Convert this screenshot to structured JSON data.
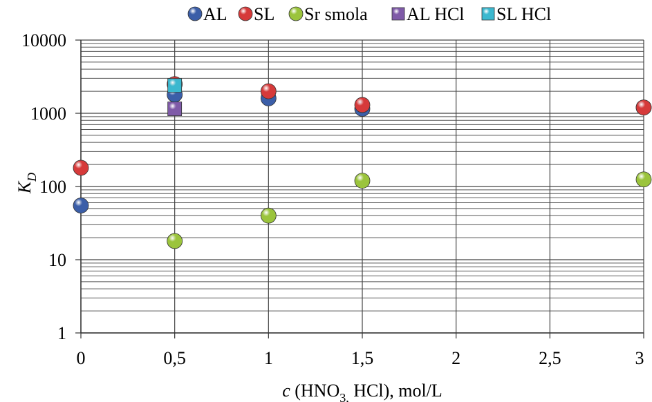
{
  "chart_data": {
    "type": "scatter",
    "xlabel_parts": {
      "var": "c",
      "pre": " (HNO",
      "sub": "3,",
      "post": " HCl), mol/L"
    },
    "ylabel_parts": {
      "var": "K",
      "sub": "D"
    },
    "xlim": [
      0,
      3
    ],
    "ylim": [
      1,
      10000
    ],
    "yscale": "log",
    "grid": "major and minor horizontal, major vertical",
    "legend_position": "top",
    "x_ticks": [
      {
        "value": 0,
        "label": "0"
      },
      {
        "value": 0.5,
        "label": "0,5"
      },
      {
        "value": 1,
        "label": "1"
      },
      {
        "value": 1.5,
        "label": "1,5"
      },
      {
        "value": 2,
        "label": "2"
      },
      {
        "value": 2.5,
        "label": "2,5"
      },
      {
        "value": 3,
        "label": "3"
      }
    ],
    "y_ticks": [
      {
        "value": 1,
        "label": "1"
      },
      {
        "value": 10,
        "label": "10"
      },
      {
        "value": 100,
        "label": "100"
      },
      {
        "value": 1000,
        "label": "1000"
      },
      {
        "value": 10000,
        "label": "10000"
      }
    ],
    "series": [
      {
        "name": "AL",
        "marker": "circle",
        "color": "#3b5ea8",
        "x": [
          0,
          0.5,
          1,
          1.5,
          3
        ],
        "y": [
          55,
          1800,
          1600,
          1150,
          1200
        ]
      },
      {
        "name": "SL",
        "marker": "circle",
        "color": "#d63a3a",
        "x": [
          0,
          0.5,
          1,
          1.5,
          3
        ],
        "y": [
          180,
          2500,
          2000,
          1300,
          1200
        ]
      },
      {
        "name": "Sr smola",
        "marker": "circle",
        "color": "#9bc43c",
        "x": [
          0.5,
          1,
          1.5,
          3
        ],
        "y": [
          18,
          40,
          120,
          125
        ]
      },
      {
        "name": "AL HCl",
        "marker": "square",
        "color": "#7f5aa8",
        "x": [
          0.5
        ],
        "y": [
          1150
        ]
      },
      {
        "name": "SL HCl",
        "marker": "square",
        "color": "#3bb8cf",
        "x": [
          0.5
        ],
        "y": [
          2400
        ]
      }
    ]
  }
}
